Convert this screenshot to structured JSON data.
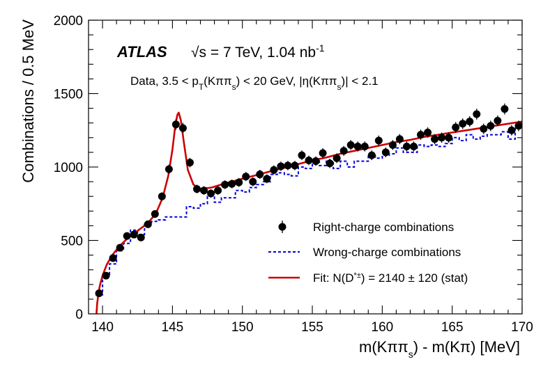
{
  "chart_data": {
    "type": "scatter",
    "title": "",
    "experiment": "ATLAS",
    "energy_label": "√s = 7 TeV, 1.04 nb",
    "energy_sup": "-1",
    "selection": {
      "p1": "Data, 3.5 < p",
      "sub1": "T",
      "p2": "(Kππ",
      "sub2": "s",
      "p3": ") < 20 GeV, |η(Kππ",
      "sub3": "s",
      "p4": ")| < 2.1"
    },
    "xlabel": {
      "p1": "m(Kππ",
      "sub1": "s",
      "p2": ") - m(Kπ)  [MeV]"
    },
    "ylabel": "Combinations / 0.5 MeV",
    "xlim": [
      139,
      170
    ],
    "ylim": [
      0,
      2000
    ],
    "xticks": [
      140,
      145,
      150,
      155,
      160,
      165,
      170
    ],
    "yticks": [
      0,
      500,
      1000,
      1500,
      2000
    ],
    "colors": {
      "data": "#000000",
      "wrong": "#0000dd",
      "fit": "#cc0000"
    },
    "legend": {
      "data": "Right-charge combinations",
      "wrong": "Wrong-charge combinations",
      "fit_p1": "Fit: N(D",
      "fit_sup": "*±",
      "fit_p2": ") = 2140 ± 120 (stat)"
    },
    "series": [
      {
        "name": "Right-charge combinations",
        "x": [
          139.75,
          140.25,
          140.75,
          141.25,
          141.75,
          142.25,
          142.75,
          143.25,
          143.75,
          144.25,
          144.75,
          145.25,
          145.75,
          146.25,
          146.75,
          147.25,
          147.75,
          148.25,
          148.75,
          149.25,
          149.75,
          150.25,
          150.75,
          151.25,
          151.75,
          152.25,
          152.75,
          153.25,
          153.75,
          154.25,
          154.75,
          155.25,
          155.75,
          156.25,
          156.75,
          157.25,
          157.75,
          158.25,
          158.75,
          159.25,
          159.75,
          160.25,
          160.75,
          161.25,
          161.75,
          162.25,
          162.75,
          163.25,
          163.75,
          164.25,
          164.75,
          165.25,
          165.75,
          166.25,
          166.75,
          167.25,
          167.75,
          168.25,
          168.75,
          169.25,
          169.75
        ],
        "y": [
          140,
          260,
          380,
          450,
          530,
          540,
          520,
          610,
          680,
          800,
          985,
          1290,
          1265,
          1030,
          850,
          840,
          820,
          840,
          880,
          885,
          895,
          935,
          900,
          950,
          920,
          980,
          1005,
          1010,
          1010,
          1080,
          1045,
          1040,
          1095,
          1025,
          1060,
          1110,
          1150,
          1140,
          1140,
          1080,
          1180,
          1100,
          1150,
          1190,
          1140,
          1140,
          1220,
          1235,
          1190,
          1200,
          1200,
          1270,
          1295,
          1310,
          1360,
          1260,
          1280,
          1315,
          1395,
          1250,
          1280
        ]
      },
      {
        "name": "Wrong-charge combinations",
        "x": [
          139.75,
          140.25,
          140.75,
          141.25,
          141.75,
          142.25,
          142.75,
          143.25,
          143.75,
          144.25,
          144.75,
          145.25,
          145.75,
          146.25,
          146.75,
          147.25,
          147.75,
          148.25,
          148.75,
          149.25,
          149.75,
          150.25,
          150.75,
          151.25,
          151.75,
          152.25,
          152.75,
          153.25,
          153.75,
          154.25,
          154.75,
          155.25,
          155.75,
          156.25,
          156.75,
          157.25,
          157.75,
          158.25,
          158.75,
          159.25,
          159.75,
          160.25,
          160.75,
          161.25,
          161.75,
          162.25,
          162.75,
          163.25,
          163.75,
          164.25,
          164.75,
          165.25,
          165.75,
          166.25,
          166.75,
          167.25,
          167.75,
          168.25,
          168.75,
          169.25,
          169.75
        ],
        "y": [
          130,
          270,
          340,
          430,
          480,
          570,
          540,
          610,
          630,
          640,
          660,
          660,
          660,
          730,
          720,
          750,
          800,
          760,
          790,
          790,
          840,
          830,
          860,
          880,
          900,
          950,
          960,
          950,
          940,
          1000,
          990,
          1050,
          1010,
          1040,
          990,
          1040,
          1000,
          1040,
          1040,
          1080,
          1060,
          1080,
          1090,
          1130,
          1100,
          1100,
          1150,
          1140,
          1150,
          1140,
          1160,
          1200,
          1180,
          1220,
          1190,
          1210,
          1220,
          1220,
          1240,
          1190,
          1280
        ]
      },
      {
        "name": "Fit",
        "x": [
          139.57,
          139.62,
          139.7,
          139.8,
          140.0,
          140.3,
          140.7,
          141.2,
          141.8,
          142.5,
          143.2,
          143.8,
          144.3,
          144.7,
          145.0,
          145.2,
          145.35,
          145.45,
          145.6,
          145.8,
          146.1,
          146.5,
          147.0,
          147.4,
          147.8,
          148.3,
          149.0,
          150.0,
          151.0,
          152.0,
          153.0,
          154.0,
          155.0,
          156.0,
          157.0,
          158.0,
          159.0,
          160.0,
          161.0,
          162.0,
          163.0,
          164.0,
          165.0,
          166.0,
          167.0,
          168.0,
          169.0,
          170.0
        ],
        "y": [
          0,
          70,
          130,
          190,
          260,
          335,
          400,
          460,
          515,
          565,
          615,
          680,
          790,
          940,
          1120,
          1280,
          1355,
          1370,
          1320,
          1180,
          980,
          880,
          850,
          855,
          860,
          875,
          895,
          920,
          945,
          970,
          995,
          1020,
          1045,
          1065,
          1090,
          1110,
          1130,
          1150,
          1170,
          1185,
          1205,
          1220,
          1235,
          1250,
          1265,
          1280,
          1295,
          1310
        ]
      }
    ]
  }
}
